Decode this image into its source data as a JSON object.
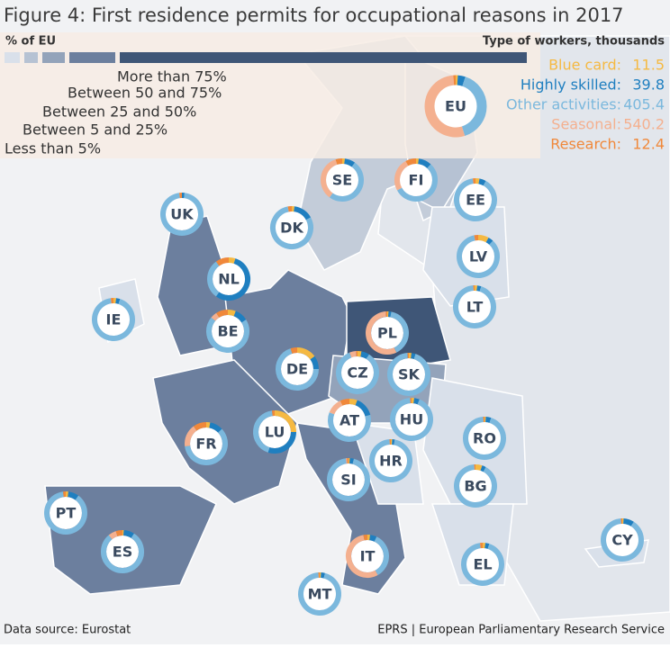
{
  "title": "Figure 4: First residence permits for occupational reasons in 2017",
  "legend": {
    "share_title": "% of EU",
    "share_ranges": [
      {
        "label": "Less than 5%",
        "color": "#d9e0ea"
      },
      {
        "label": "Between 5 and 25%",
        "color": "#b6c2d3"
      },
      {
        "label": "Between 25 and 50%",
        "color": "#93a3ba"
      },
      {
        "label": "Between 50 and 75%",
        "color": "#6c7f9e"
      },
      {
        "label": "More than 75%",
        "color": "#3f5677"
      }
    ],
    "worker_title": "Type of workers, thousands",
    "worker_types": [
      {
        "name": "Blue card:",
        "color": "#f5b942",
        "value": 11.5
      },
      {
        "name": "Highly skilled:",
        "color": "#1f7fc0",
        "value": 39.8
      },
      {
        "name": "Other activities:",
        "color": "#7bb8dd",
        "value": 405.4
      },
      {
        "name": "Seasonal:",
        "color": "#f4b08f",
        "value": 540.2
      },
      {
        "name": "Research:",
        "color": "#f0883a",
        "value": 12.4
      }
    ]
  },
  "eu": {
    "label": "EU"
  },
  "countries": [
    {
      "label": "SE",
      "shares": [
        2,
        8,
        50,
        35,
        5
      ]
    },
    {
      "label": "FI",
      "shares": [
        2,
        10,
        55,
        25,
        8
      ]
    },
    {
      "label": "EE",
      "shares": [
        3,
        5,
        90,
        0,
        2
      ]
    },
    {
      "label": "DK",
      "shares": [
        2,
        15,
        80,
        0,
        3
      ]
    },
    {
      "label": "UK",
      "shares": [
        0,
        2,
        96,
        0,
        2
      ]
    },
    {
      "label": "NL",
      "shares": [
        5,
        55,
        30,
        0,
        10
      ]
    },
    {
      "label": "LV",
      "shares": [
        8,
        4,
        85,
        0,
        3
      ]
    },
    {
      "label": "IE",
      "shares": [
        2,
        3,
        93,
        0,
        2
      ]
    },
    {
      "label": "BE",
      "shares": [
        6,
        10,
        70,
        5,
        9
      ]
    },
    {
      "label": "LT",
      "shares": [
        2,
        3,
        94,
        0,
        1
      ]
    },
    {
      "label": "PL",
      "shares": [
        1,
        2,
        40,
        56,
        1
      ]
    },
    {
      "label": "DE",
      "shares": [
        15,
        10,
        70,
        0,
        5
      ]
    },
    {
      "label": "CZ",
      "shares": [
        3,
        6,
        85,
        5,
        1
      ]
    },
    {
      "label": "SK",
      "shares": [
        2,
        3,
        94,
        0,
        1
      ]
    },
    {
      "label": "AT",
      "shares": [
        6,
        15,
        60,
        12,
        7
      ]
    },
    {
      "label": "LU",
      "shares": [
        25,
        30,
        43,
        0,
        2
      ]
    },
    {
      "label": "FR",
      "shares": [
        3,
        10,
        60,
        17,
        10
      ]
    },
    {
      "label": "HU",
      "shares": [
        2,
        4,
        93,
        0,
        1
      ]
    },
    {
      "label": "RO",
      "shares": [
        1,
        4,
        94,
        0,
        1
      ]
    },
    {
      "label": "HR",
      "shares": [
        1,
        2,
        96,
        0,
        1
      ]
    },
    {
      "label": "SI",
      "shares": [
        1,
        3,
        94,
        1,
        1
      ]
    },
    {
      "label": "BG",
      "shares": [
        5,
        3,
        91,
        0,
        1
      ]
    },
    {
      "label": "PT",
      "shares": [
        2,
        8,
        88,
        0,
        2
      ]
    },
    {
      "label": "ES",
      "shares": [
        1,
        8,
        80,
        6,
        5
      ]
    },
    {
      "label": "IT",
      "shares": [
        2,
        5,
        35,
        55,
        3
      ]
    },
    {
      "label": "EL",
      "shares": [
        2,
        3,
        93,
        0,
        2
      ]
    },
    {
      "label": "CY",
      "shares": [
        1,
        8,
        90,
        0,
        1
      ]
    },
    {
      "label": "MT",
      "shares": [
        1,
        3,
        95,
        0,
        1
      ]
    }
  ],
  "footer": {
    "source": "Data source: Eurostat",
    "credit": "EPRS | European Parliamentary Research Service"
  }
}
